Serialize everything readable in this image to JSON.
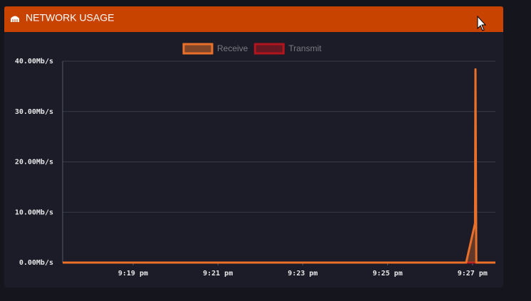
{
  "header": {
    "title": "NETWORK USAGE"
  },
  "chart_data": {
    "type": "line",
    "legend": "top",
    "series": [
      {
        "name": "Receive",
        "color": "#e8702a",
        "fill": true,
        "x": [
          1277.34,
          1286.85,
          1287.06,
          1287.07,
          1287.09,
          1287.54
        ],
        "values": [
          0,
          0,
          7.8,
          38.4,
          0,
          0
        ]
      },
      {
        "name": "Transmit",
        "color": "#b0141e",
        "fill": true,
        "x": [
          1277.34,
          1287.54
        ],
        "values": [
          0,
          0
        ]
      }
    ],
    "xlim": [
      1277.34,
      1287.54
    ],
    "xticks": [
      {
        "value": 1279,
        "label": "9:19 pm"
      },
      {
        "value": 1281,
        "label": "9:21 pm"
      },
      {
        "value": 1283,
        "label": "9:23 pm"
      },
      {
        "value": 1285,
        "label": "9:25 pm"
      },
      {
        "value": 1287,
        "label": "9:27 pm"
      }
    ],
    "ylim": [
      0,
      40
    ],
    "yticks": [
      {
        "value": 0,
        "label": "0.00Mb/s"
      },
      {
        "value": 10,
        "label": "10.00Mb/s"
      },
      {
        "value": 20,
        "label": "20.00Mb/s"
      },
      {
        "value": 30,
        "label": "30.00Mb/s"
      },
      {
        "value": 40,
        "label": "40.00Mb/s"
      }
    ],
    "grid": true
  }
}
